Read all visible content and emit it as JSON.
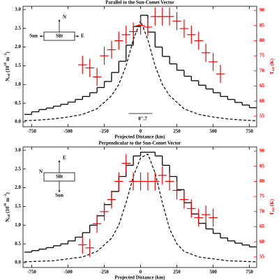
{
  "chart_data": [
    {
      "type": "step",
      "title": "Parallel to the Sun-Comet Vector",
      "xlabel": "Projected Distance (km)",
      "ylabel": {
        "text": "N",
        "sub": "col",
        "mid": " (10",
        "sup": "10",
        "unit": " m",
        "unit_sup": "−2",
        "close": ")"
      },
      "y2label": {
        "text": "T",
        "sub": "rot",
        "rest": " (K)"
      },
      "xlim": [
        -810,
        800
      ],
      "xticks": [
        -750,
        -500,
        -250,
        0,
        250,
        500,
        750
      ],
      "ylim": [
        -0.13,
        3.09
      ],
      "yticks": [
        {
          "value": 0,
          "label": "0.0"
        },
        {
          "value": 0.5,
          "label": "0.5"
        },
        {
          "value": 1,
          "label": "1.0"
        },
        {
          "value": 1.5,
          "label": "1.5"
        },
        {
          "value": 2,
          "label": "2.0"
        },
        {
          "value": 2.5,
          "label": "2.5"
        },
        {
          "value": 3,
          "label": "3.0"
        }
      ],
      "y2lim": [
        51.5,
        91.4
      ],
      "y2ticks": [
        55,
        60,
        65,
        70,
        75,
        80,
        85,
        90
      ],
      "histogram": {
        "color": "#000000",
        "bins": [
          -800,
          -750,
          -700,
          -650,
          -600,
          -550,
          -500,
          -450,
          -400,
          -350,
          -300,
          -250,
          -200,
          -150,
          -100,
          -50,
          0,
          50,
          100,
          150,
          200,
          250,
          300,
          350,
          400,
          450,
          500,
          550,
          600,
          650,
          700,
          750,
          800
        ],
        "values": [
          0.2,
          0.27,
          0.33,
          0.37,
          0.42,
          0.47,
          0.53,
          0.6,
          0.68,
          0.78,
          0.92,
          1.08,
          1.32,
          1.62,
          2.05,
          2.55,
          2.85,
          2.4,
          2.0,
          1.75,
          1.55,
          1.38,
          1.22,
          1.1,
          0.98,
          0.88,
          0.78,
          0.68,
          0.6,
          0.52,
          0.45,
          0.38
        ]
      },
      "model": {
        "color": "#000000",
        "dashed": true,
        "x": [
          -800,
          -700,
          -600,
          -500,
          -400,
          -300,
          -200,
          -150,
          -100,
          -50,
          0,
          50,
          100,
          150,
          200,
          300,
          400,
          500,
          600,
          700,
          800
        ],
        "values": [
          0.03,
          0.05,
          0.08,
          0.13,
          0.2,
          0.35,
          0.7,
          1.0,
          1.5,
          2.2,
          2.7,
          2.2,
          1.5,
          1.0,
          0.7,
          0.35,
          0.2,
          0.13,
          0.08,
          0.05,
          0.03
        ]
      },
      "temperature": {
        "color": "#ff0000",
        "axis": "y2",
        "xerr": 30,
        "x": [
          -400,
          -350,
          -300,
          -250,
          -200,
          -150,
          -100,
          -50,
          0,
          50,
          100,
          150,
          200,
          250,
          300,
          350,
          400,
          450,
          500,
          550
        ],
        "values": [
          72,
          71,
          68,
          75,
          77,
          80,
          82,
          83,
          85,
          84.5,
          88,
          88,
          88,
          86.5,
          84,
          82,
          80,
          76,
          73,
          69
        ],
        "yerr": [
          3,
          3,
          3,
          3,
          3,
          3,
          3,
          3,
          3,
          3,
          3,
          3,
          3,
          3,
          3,
          3,
          3,
          3,
          3,
          3
        ]
      },
      "compass": {
        "up": "N",
        "left": "Sun",
        "right": "E",
        "box": "Slit"
      },
      "scale_label": "0″.7"
    },
    {
      "type": "step",
      "title": "Perpendicular to the Sun-Comet Vector",
      "xlabel": "Projected Distance (km)",
      "ylabel": {
        "text": "N",
        "sub": "col",
        "mid": " (10",
        "sup": "10",
        "unit": " m",
        "unit_sup": "−2",
        "close": ")"
      },
      "y2label": {
        "text": "T",
        "sub": "rot",
        "rest": " (K)"
      },
      "xlim": [
        -810,
        800
      ],
      "xticks": [
        -750,
        -500,
        -250,
        0,
        250,
        500,
        750
      ],
      "ylim": [
        -0.13,
        3.09
      ],
      "yticks": [
        {
          "value": 0,
          "label": "0.0"
        },
        {
          "value": 0.5,
          "label": "0.5"
        },
        {
          "value": 1,
          "label": "1.0"
        },
        {
          "value": 1.5,
          "label": "1.5"
        },
        {
          "value": 2,
          "label": "2.0"
        },
        {
          "value": 2.5,
          "label": "2.5"
        },
        {
          "value": 3,
          "label": "3.0"
        }
      ],
      "y2lim": [
        51.5,
        91.4
      ],
      "y2ticks": [
        55,
        60,
        65,
        70,
        75,
        80,
        85,
        90
      ],
      "histogram": {
        "color": "#000000",
        "bins": [
          -800,
          -750,
          -700,
          -650,
          -600,
          -550,
          -500,
          -450,
          -400,
          -350,
          -300,
          -250,
          -200,
          -150,
          -100,
          -50,
          0,
          50,
          100,
          150,
          200,
          250,
          300,
          350,
          400,
          450,
          500,
          550,
          600,
          650,
          700,
          750,
          800
        ],
        "values": [
          0.28,
          0.32,
          0.36,
          0.4,
          0.45,
          0.5,
          0.58,
          0.68,
          0.8,
          1.0,
          1.25,
          1.55,
          1.9,
          2.3,
          2.6,
          2.85,
          2.95,
          2.95,
          2.85,
          2.6,
          2.3,
          1.95,
          1.6,
          1.3,
          1.05,
          0.9,
          0.78,
          0.66,
          0.58,
          0.52,
          0.47,
          0.42
        ]
      },
      "model": {
        "color": "#000000",
        "dashed": true,
        "x": [
          -800,
          -600,
          -400,
          -300,
          -200,
          -150,
          -100,
          -50,
          0,
          50,
          100,
          150,
          200,
          250,
          300,
          400,
          600,
          800
        ],
        "values": [
          0.02,
          0.05,
          0.15,
          0.3,
          0.65,
          1.0,
          1.6,
          2.3,
          2.8,
          2.9,
          2.4,
          1.6,
          0.9,
          0.5,
          0.3,
          0.15,
          0.05,
          0.02
        ]
      },
      "temperature": {
        "color": "#ff0000",
        "axis": "y2",
        "xerr": 30,
        "x": [
          -400,
          -350,
          -300,
          -250,
          -200,
          -150,
          -100,
          -50,
          0,
          50,
          100,
          150,
          200,
          250,
          300,
          350,
          400,
          450,
          500
        ],
        "values": [
          59,
          58,
          66,
          70,
          74,
          80,
          86,
          80,
          80,
          80,
          80,
          82,
          80,
          77,
          74,
          71,
          68,
          69,
          68
        ],
        "yerr": [
          3,
          3,
          3,
          3,
          3,
          3,
          3,
          3,
          3,
          3,
          3,
          3,
          3,
          3,
          3,
          3,
          3,
          3,
          3
        ]
      },
      "compass": {
        "up": "E",
        "left": "N",
        "down": "Sun",
        "box": "Slit"
      }
    }
  ]
}
